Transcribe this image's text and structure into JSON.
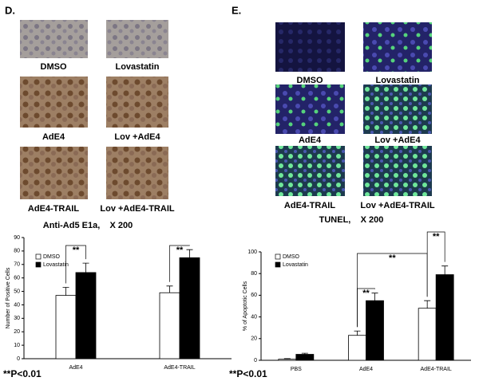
{
  "panel_d": {
    "label": "D.",
    "captions": [
      "DMSO",
      "Lovastatin",
      "AdE4",
      "Lov +AdE4",
      "AdE4-TRAIL",
      "Lov +AdE4-TRAIL"
    ],
    "stain": "Anti-Ad5 E1a,    X 200",
    "footnote": "**P<0.01"
  },
  "panel_e": {
    "label": "E.",
    "captions": [
      "DMSO",
      "Lovastatin",
      "AdE4",
      "Lov +AdE4",
      "AdE4-TRAIL",
      "Lov +AdE4-TRAIL"
    ],
    "stain": "TUNEL,    X 200",
    "footnote": "**P<0.01"
  },
  "chart_data": [
    {
      "type": "bar",
      "y_label": "Number of Positive Cells",
      "categories": [
        "AdE4",
        "AdE4-TRAIL"
      ],
      "series": [
        {
          "name": "DMSO",
          "color": "#ffffff",
          "values": [
            47,
            49
          ],
          "errors": [
            6,
            5
          ]
        },
        {
          "name": "Lovastatin",
          "color": "#000000",
          "values": [
            64,
            75
          ],
          "errors": [
            7,
            6
          ]
        }
      ],
      "ylim": [
        0,
        90
      ],
      "yticks": [
        0,
        10,
        20,
        30,
        40,
        50,
        60,
        70,
        80,
        90
      ],
      "legend": "upper-left",
      "annotations": [
        "**",
        "**"
      ]
    },
    {
      "type": "bar",
      "y_label": "% of Apoptotic Cells",
      "categories": [
        "PBS",
        "AdE4",
        "AdE4-TRAIL"
      ],
      "series": [
        {
          "name": "DMSO",
          "color": "#ffffff",
          "values": [
            1,
            23,
            48
          ],
          "errors": [
            0.5,
            4,
            7
          ]
        },
        {
          "name": "Lovastatin",
          "color": "#000000",
          "values": [
            5.5,
            55,
            79
          ],
          "errors": [
            1,
            7,
            8
          ]
        }
      ],
      "ylim": [
        0,
        100
      ],
      "yticks": [
        0,
        20,
        40,
        60,
        80,
        100
      ],
      "legend": "upper-left",
      "annotations": [
        "**",
        "**",
        "**"
      ]
    }
  ]
}
